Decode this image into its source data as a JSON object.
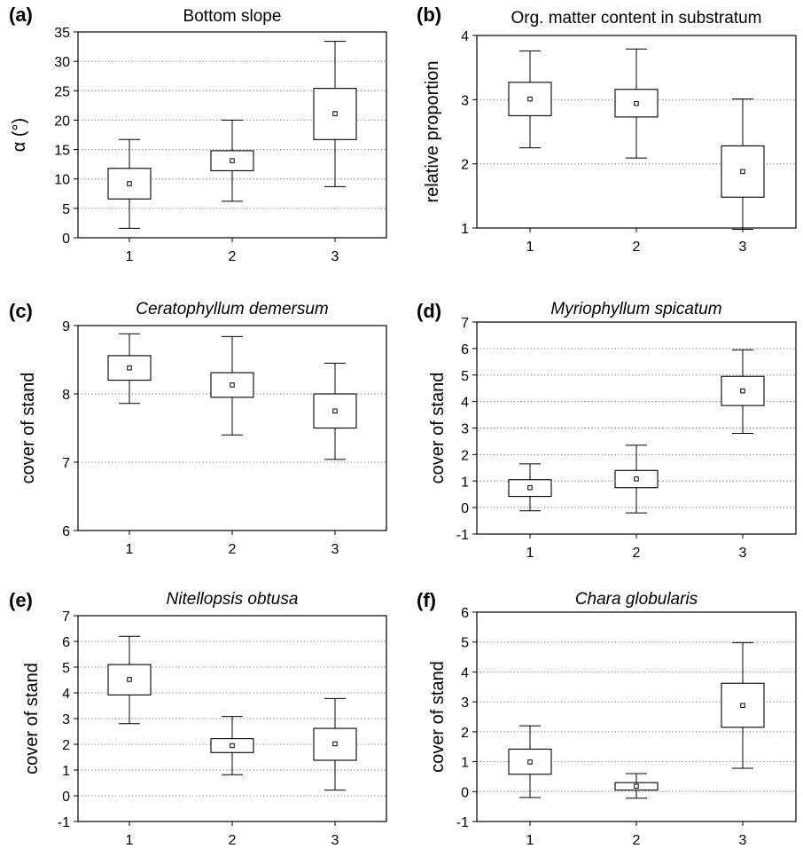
{
  "chart_data": [
    {
      "panel": "(a)",
      "type": "box",
      "title": "Bottom slope",
      "title_italic": false,
      "ylabel": "α (°)",
      "categories": [
        "1",
        "2",
        "3"
      ],
      "ylim": [
        0,
        35
      ],
      "yticks": [
        0,
        5,
        10,
        15,
        20,
        25,
        30,
        35
      ],
      "grid": true,
      "boxes": [
        {
          "category": "1",
          "center": 9.2,
          "box_low": 6.6,
          "box_high": 11.8,
          "whisker_low": 1.6,
          "whisker_high": 16.7
        },
        {
          "category": "2",
          "center": 13.1,
          "box_low": 11.4,
          "box_high": 14.8,
          "whisker_low": 6.2,
          "whisker_high": 20.0
        },
        {
          "category": "3",
          "center": 21.1,
          "box_low": 16.7,
          "box_high": 25.4,
          "whisker_low": 8.7,
          "whisker_high": 33.4
        }
      ]
    },
    {
      "panel": "(b)",
      "type": "box",
      "title": "Org. matter content in substratum",
      "title_italic": false,
      "ylabel": "relative proportion",
      "categories": [
        "1",
        "2",
        "3"
      ],
      "ylim": [
        1,
        4
      ],
      "yticks": [
        1,
        2,
        3,
        4
      ],
      "grid": true,
      "boxes": [
        {
          "category": "1",
          "center": 3.01,
          "box_low": 2.75,
          "box_high": 3.27,
          "whisker_low": 2.25,
          "whisker_high": 3.76
        },
        {
          "category": "2",
          "center": 2.94,
          "box_low": 2.73,
          "box_high": 3.16,
          "whisker_low": 2.09,
          "whisker_high": 3.79
        },
        {
          "category": "3",
          "center": 1.88,
          "box_low": 1.48,
          "box_high": 2.28,
          "whisker_low": 0.98,
          "whisker_high": 3.01
        }
      ]
    },
    {
      "panel": "(c)",
      "type": "box",
      "title": "Ceratophyllum demersum",
      "title_italic": true,
      "ylabel": "cover of stand",
      "categories": [
        "1",
        "2",
        "3"
      ],
      "ylim": [
        6,
        9
      ],
      "yticks": [
        6,
        7,
        8,
        9
      ],
      "grid": true,
      "boxes": [
        {
          "category": "1",
          "center": 8.38,
          "box_low": 8.2,
          "box_high": 8.56,
          "whisker_low": 7.86,
          "whisker_high": 8.88
        },
        {
          "category": "2",
          "center": 8.13,
          "box_low": 7.95,
          "box_high": 8.31,
          "whisker_low": 7.4,
          "whisker_high": 8.84
        },
        {
          "category": "3",
          "center": 7.75,
          "box_low": 7.5,
          "box_high": 8.0,
          "whisker_low": 7.04,
          "whisker_high": 8.45
        }
      ]
    },
    {
      "panel": "(d)",
      "type": "box",
      "title": "Myriophyllum spicatum",
      "title_italic": true,
      "ylabel": "cover of stand",
      "categories": [
        "1",
        "2",
        "3"
      ],
      "ylim": [
        -1,
        7
      ],
      "yticks": [
        -1,
        0,
        1,
        2,
        3,
        4,
        5,
        6,
        7
      ],
      "grid": true,
      "boxes": [
        {
          "category": "1",
          "center": 0.75,
          "box_low": 0.42,
          "box_high": 1.05,
          "whisker_low": -0.12,
          "whisker_high": 1.65
        },
        {
          "category": "2",
          "center": 1.08,
          "box_low": 0.75,
          "box_high": 1.4,
          "whisker_low": -0.2,
          "whisker_high": 2.35
        },
        {
          "category": "3",
          "center": 4.4,
          "box_low": 3.85,
          "box_high": 4.95,
          "whisker_low": 2.8,
          "whisker_high": 5.95
        }
      ]
    },
    {
      "panel": "(e)",
      "type": "box",
      "title": "Nitellopsis obtusa",
      "title_italic": true,
      "ylabel": "cover of stand",
      "categories": [
        "1",
        "2",
        "3"
      ],
      "ylim": [
        -1,
        7
      ],
      "yticks": [
        -1,
        0,
        1,
        2,
        3,
        4,
        5,
        6,
        7
      ],
      "grid": true,
      "boxes": [
        {
          "category": "1",
          "center": 4.52,
          "box_low": 3.92,
          "box_high": 5.1,
          "whisker_low": 2.8,
          "whisker_high": 6.2
        },
        {
          "category": "2",
          "center": 1.95,
          "box_low": 1.68,
          "box_high": 2.22,
          "whisker_low": 0.82,
          "whisker_high": 3.08
        },
        {
          "category": "3",
          "center": 2.02,
          "box_low": 1.38,
          "box_high": 2.62,
          "whisker_low": 0.22,
          "whisker_high": 3.78
        }
      ]
    },
    {
      "panel": "(f)",
      "type": "box",
      "title": "Chara globularis",
      "title_italic": true,
      "ylabel": "cover of stand",
      "categories": [
        "1",
        "2",
        "3"
      ],
      "ylim": [
        -1,
        6
      ],
      "yticks": [
        -1,
        0,
        1,
        2,
        3,
        4,
        5,
        6
      ],
      "grid": true,
      "boxes": [
        {
          "category": "1",
          "center": 0.99,
          "box_low": 0.58,
          "box_high": 1.42,
          "whisker_low": -0.2,
          "whisker_high": 2.2
        },
        {
          "category": "2",
          "center": 0.18,
          "box_low": 0.05,
          "box_high": 0.3,
          "whisker_low": -0.22,
          "whisker_high": 0.6
        },
        {
          "category": "3",
          "center": 2.88,
          "box_low": 2.15,
          "box_high": 3.62,
          "whisker_low": 0.78,
          "whisker_high": 4.98
        }
      ]
    }
  ]
}
